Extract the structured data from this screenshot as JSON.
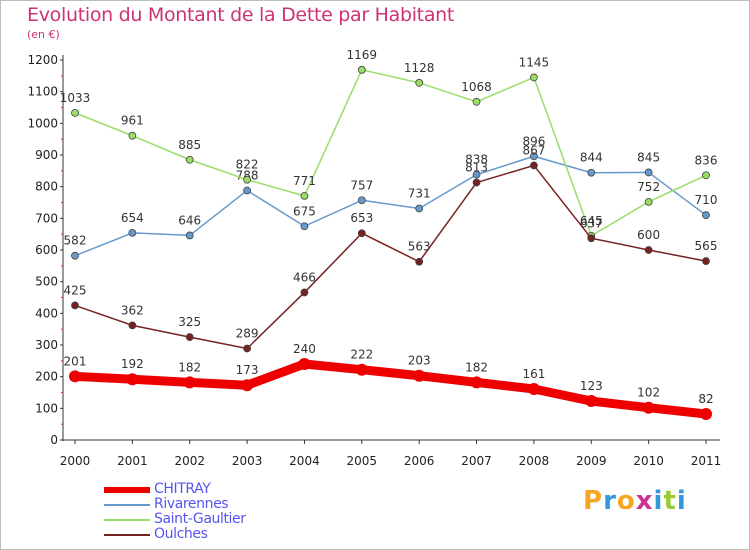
{
  "header": {
    "title": "Evolution du Montant de la Dette par Habitant",
    "unit": "(en €)"
  },
  "logo": {
    "letters": [
      "P",
      "r",
      "o",
      "x",
      "i",
      "t",
      "i"
    ],
    "colors": [
      "#f5a623",
      "#3399dd",
      "#f5a623",
      "#cc3399",
      "#3399dd",
      "#99cc33",
      "#3399dd"
    ]
  },
  "chart_data": {
    "type": "line",
    "title": "Evolution du Montant de la Dette par Habitant",
    "ylabel": "(en €)",
    "xlabel": "",
    "categories": [
      "2000",
      "2001",
      "2002",
      "2003",
      "2004",
      "2005",
      "2006",
      "2007",
      "2008",
      "2009",
      "2010",
      "2011"
    ],
    "ylim": [
      0,
      1200
    ],
    "yticks": [
      0,
      100,
      200,
      300,
      400,
      500,
      600,
      700,
      800,
      900,
      1000,
      1100,
      1200
    ],
    "grid": false,
    "legend_position": "bottom-left",
    "series": [
      {
        "name": "CHITRAY",
        "color": "#ee0000",
        "values": [
          201,
          192,
          182,
          173,
          240,
          222,
          203,
          182,
          161,
          123,
          102,
          82
        ],
        "labels": [
          "201",
          "192",
          "182",
          "173",
          "240",
          "222",
          "203",
          "182",
          "161",
          "123",
          "102",
          "82"
        ]
      },
      {
        "name": "Rivarennes",
        "color": "#6699cc",
        "values": [
          582,
          654,
          646,
          788,
          675,
          757,
          731,
          838,
          896,
          844,
          845,
          710
        ],
        "labels": [
          "582",
          "654",
          "646",
          "788",
          "675",
          "757",
          "731",
          "838",
          "896",
          "844",
          "845",
          "710"
        ]
      },
      {
        "name": "Saint-Gaultier",
        "color": "#99dd66",
        "values": [
          1033,
          961,
          885,
          822,
          771,
          1169,
          1128,
          1068,
          1145,
          645,
          752,
          836
        ],
        "labels": [
          "1033",
          "961",
          "885",
          "822",
          "771",
          "1169",
          "1128",
          "1068",
          "1145",
          "645",
          "752",
          "836"
        ]
      },
      {
        "name": "Oulches",
        "color": "#772222",
        "values": [
          425,
          362,
          325,
          289,
          466,
          653,
          563,
          813,
          867,
          637,
          600,
          565
        ],
        "labels": [
          "425",
          "362",
          "325",
          "289",
          "466",
          "653",
          "563",
          "813",
          "867",
          "637",
          "600",
          "565"
        ]
      }
    ]
  }
}
